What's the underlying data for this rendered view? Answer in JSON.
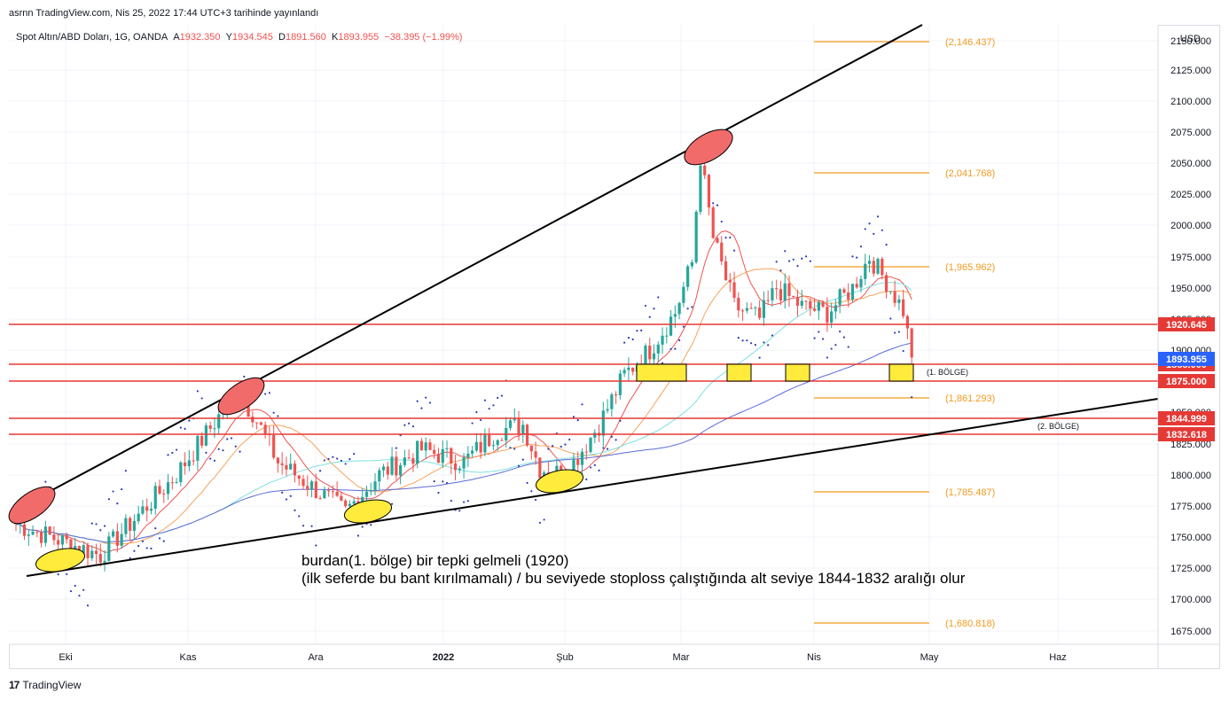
{
  "header": {
    "published": "asrnn TradingView.com, Nis 25, 2022 17:44 UTC+3 tarihinde yayınlandı"
  },
  "legend": {
    "symbol": "Spot Altın/ABD Doları, 1G, OANDA",
    "open_label": "A",
    "open": "1932.350",
    "high_label": "Y",
    "high": "1934.545",
    "low_label": "D",
    "low": "1891.560",
    "close_label": "K",
    "close": "1893.955",
    "change": "−38.395 (−1.99%)"
  },
  "footer": {
    "logo": "17",
    "brand": "TradingView"
  },
  "colors": {
    "up": "#26a69a",
    "down": "#ef5350",
    "level": "#e53935",
    "fib": "#f29a1f",
    "trend": "#000000",
    "price_badge": "#2962ff",
    "zone_fill": "#ffeb3b",
    "red_ellipse": "#f26b6b",
    "yellow_ellipse": "#ffeb3b"
  },
  "chart_data": {
    "type": "candlestick",
    "currency": "USD",
    "y_ticks": [
      "2150.000",
      "2125.000",
      "2100.000",
      "2075.000",
      "2050.000",
      "2025.000",
      "2000.000",
      "1975.000",
      "1950.000",
      "1925.000",
      "1900.000",
      "1875.000",
      "1850.000",
      "1825.000",
      "1800.000",
      "1775.000",
      "1750.000",
      "1725.000",
      "1700.000",
      "1675.000"
    ],
    "x_ticks": [
      "Eki",
      "Kas",
      "Ara",
      "2022",
      "Şub",
      "Mar",
      "Nis",
      "May",
      "Haz"
    ],
    "last_price": "1893.955",
    "horizontal_levels": [
      {
        "value": 1920.645,
        "label": "1920.645"
      },
      {
        "value": 1888.0,
        "label": "1888.000"
      },
      {
        "value": 1875.0,
        "label": "1875.000"
      },
      {
        "value": 1844.999,
        "label": "1844.999"
      },
      {
        "value": 1832.618,
        "label": "1832.618"
      }
    ],
    "fib_levels": [
      {
        "value": 2146.437,
        "label": "(2,146.437)"
      },
      {
        "value": 2041.768,
        "label": "(2,041.768)"
      },
      {
        "value": 1965.962,
        "label": "(1,965.962)"
      },
      {
        "value": 1861.293,
        "label": "(1,861.293)"
      },
      {
        "value": 1785.487,
        "label": "(1,785.487)"
      },
      {
        "value": 1680.818,
        "label": "(1,680.818)"
      }
    ],
    "zones": [
      {
        "label": "(1. BÖLGE)"
      },
      {
        "label": "(2. BÖLGE)"
      }
    ],
    "annotation_lines": [
      "burdan(1. bölge) bir tepki gelmeli (1920)",
      "(ilk seferde bu bant kırılmamalı)  / bu seviyede stoploss çalıştığında alt seviye 1844-1832 aralığı olur"
    ],
    "anchors": [
      {
        "day": 0,
        "price": 1760
      },
      {
        "day": 20,
        "price": 1735
      },
      {
        "day": 38,
        "price": 1800
      },
      {
        "day": 52,
        "price": 1865
      },
      {
        "day": 56,
        "price": 1850
      },
      {
        "day": 62,
        "price": 1810
      },
      {
        "day": 72,
        "price": 1785
      },
      {
        "day": 78,
        "price": 1770
      },
      {
        "day": 86,
        "price": 1800
      },
      {
        "day": 96,
        "price": 1820
      },
      {
        "day": 106,
        "price": 1810
      },
      {
        "day": 114,
        "price": 1835
      },
      {
        "day": 120,
        "price": 1840
      },
      {
        "day": 124,
        "price": 1805
      },
      {
        "day": 130,
        "price": 1800
      },
      {
        "day": 138,
        "price": 1840
      },
      {
        "day": 144,
        "price": 1880
      },
      {
        "day": 150,
        "price": 1900
      },
      {
        "day": 156,
        "price": 1930
      },
      {
        "day": 160,
        "price": 1970
      },
      {
        "day": 162,
        "price": 2055
      },
      {
        "day": 165,
        "price": 1990
      },
      {
        "day": 170,
        "price": 1935
      },
      {
        "day": 176,
        "price": 1925
      },
      {
        "day": 180,
        "price": 1950
      },
      {
        "day": 186,
        "price": 1935
      },
      {
        "day": 192,
        "price": 1930
      },
      {
        "day": 198,
        "price": 1950
      },
      {
        "day": 202,
        "price": 1975
      },
      {
        "day": 206,
        "price": 1955
      },
      {
        "day": 210,
        "price": 1932
      },
      {
        "day": 212,
        "price": 1894
      }
    ]
  }
}
